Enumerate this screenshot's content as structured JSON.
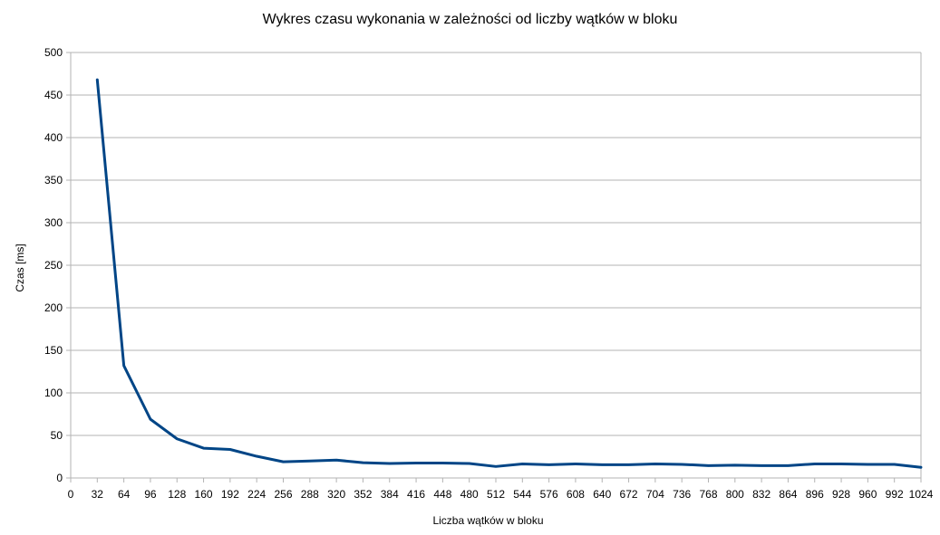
{
  "chart_data": {
    "type": "line",
    "title": "Wykres czasu wykonania w zależności od liczby wątków w bloku",
    "xlabel": "Liczba wątków w bloku",
    "ylabel": "Czas [ms]",
    "ylim": [
      0,
      500
    ],
    "yticks": [
      0,
      50,
      100,
      150,
      200,
      250,
      300,
      350,
      400,
      450,
      500
    ],
    "xticks": [
      0,
      32,
      64,
      96,
      128,
      160,
      192,
      224,
      256,
      288,
      320,
      352,
      384,
      416,
      448,
      480,
      512,
      544,
      576,
      608,
      640,
      672,
      704,
      736,
      768,
      800,
      832,
      864,
      896,
      928,
      960,
      992,
      1024
    ],
    "grid": true,
    "legend": "none",
    "color": "#004586",
    "x": [
      32,
      64,
      96,
      128,
      160,
      192,
      224,
      256,
      288,
      320,
      352,
      384,
      416,
      448,
      480,
      512,
      544,
      576,
      608,
      640,
      672,
      704,
      736,
      768,
      800,
      832,
      864,
      896,
      928,
      960,
      992,
      1024
    ],
    "y": [
      468,
      132,
      69,
      46,
      35,
      33.5,
      25.5,
      19,
      20,
      21,
      18,
      17,
      17.5,
      17.5,
      17,
      13.5,
      16.5,
      15.5,
      16.5,
      15.5,
      15.5,
      16.5,
      16,
      14.5,
      15,
      14.5,
      14.5,
      16.5,
      16.5,
      16,
      16,
      12.5
    ]
  }
}
